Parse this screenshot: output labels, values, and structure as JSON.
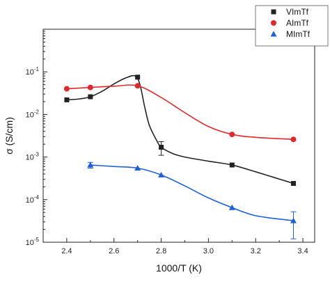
{
  "chart_data": {
    "type": "line",
    "xlabel": "1000/T (K)",
    "ylabel": "σ (S/cm)",
    "xlim": [
      2.3,
      3.45
    ],
    "ylim": [
      1e-05,
      1
    ],
    "yscale": "log",
    "x_ticks": [
      2.4,
      2.6,
      2.8,
      3.0,
      3.2,
      3.4
    ],
    "x_tick_labels": [
      "2.4",
      "2.6",
      "2.8",
      "3.0",
      "3.2",
      "3.4"
    ],
    "y_ticks": [
      1e-05,
      0.0001,
      0.001,
      0.01,
      0.1
    ],
    "y_tick_labels": [
      {
        "base": "10",
        "exp": "-5"
      },
      {
        "base": "10",
        "exp": "-4"
      },
      {
        "base": "10",
        "exp": "-3"
      },
      {
        "base": "10",
        "exp": "-2"
      },
      {
        "base": "10",
        "exp": "-1"
      }
    ],
    "grid": false,
    "legend_position": "top-right",
    "series": [
      {
        "name": "VImTf",
        "color": "#222222",
        "marker": "square",
        "x": [
          2.4,
          2.5,
          2.7,
          2.8,
          3.1,
          3.36
        ],
        "y": [
          0.022,
          0.026,
          0.075,
          0.0017,
          0.00065,
          0.00024
        ],
        "y_err": [
          0,
          0,
          0,
          0.0006,
          0,
          0
        ],
        "curve_x": [
          2.4,
          2.45,
          2.5,
          2.55,
          2.6,
          2.65,
          2.69,
          2.71,
          2.73,
          2.75,
          2.78,
          2.8,
          2.85,
          2.9,
          3.0,
          3.1,
          3.2,
          3.36
        ],
        "curve_y": [
          0.022,
          0.023,
          0.026,
          0.035,
          0.052,
          0.072,
          0.08,
          0.05,
          0.015,
          0.0055,
          0.0025,
          0.0017,
          0.0012,
          0.001,
          0.0008,
          0.00065,
          0.00045,
          0.00024
        ]
      },
      {
        "name": "AImTf",
        "color": "#e0292b",
        "marker": "circle",
        "x": [
          2.4,
          2.5,
          2.7,
          3.1,
          3.36
        ],
        "y": [
          0.04,
          0.043,
          0.047,
          0.0034,
          0.0026
        ],
        "y_err": [
          0,
          0,
          0,
          0,
          0
        ],
        "curve_x": [
          2.4,
          2.5,
          2.6,
          2.7,
          2.8,
          2.9,
          3.0,
          3.1,
          3.2,
          3.36
        ],
        "curve_y": [
          0.04,
          0.043,
          0.046,
          0.047,
          0.025,
          0.011,
          0.0052,
          0.0034,
          0.0029,
          0.0026
        ]
      },
      {
        "name": "MImTf",
        "color": "#1f5fd6",
        "marker": "triangle",
        "x": [
          2.5,
          2.7,
          2.8,
          3.1,
          3.36
        ],
        "y": [
          0.00065,
          0.00055,
          0.00038,
          6.5e-05,
          3.2e-05
        ],
        "y_err": [
          0.0001,
          0,
          0,
          0,
          2e-05
        ],
        "curve_x": [
          2.5,
          2.6,
          2.7,
          2.8,
          2.9,
          3.0,
          3.1,
          3.2,
          3.36
        ],
        "curve_y": [
          0.00065,
          0.0006,
          0.00055,
          0.00038,
          0.00021,
          0.00011,
          6.5e-05,
          4.2e-05,
          3.2e-05
        ]
      }
    ]
  }
}
